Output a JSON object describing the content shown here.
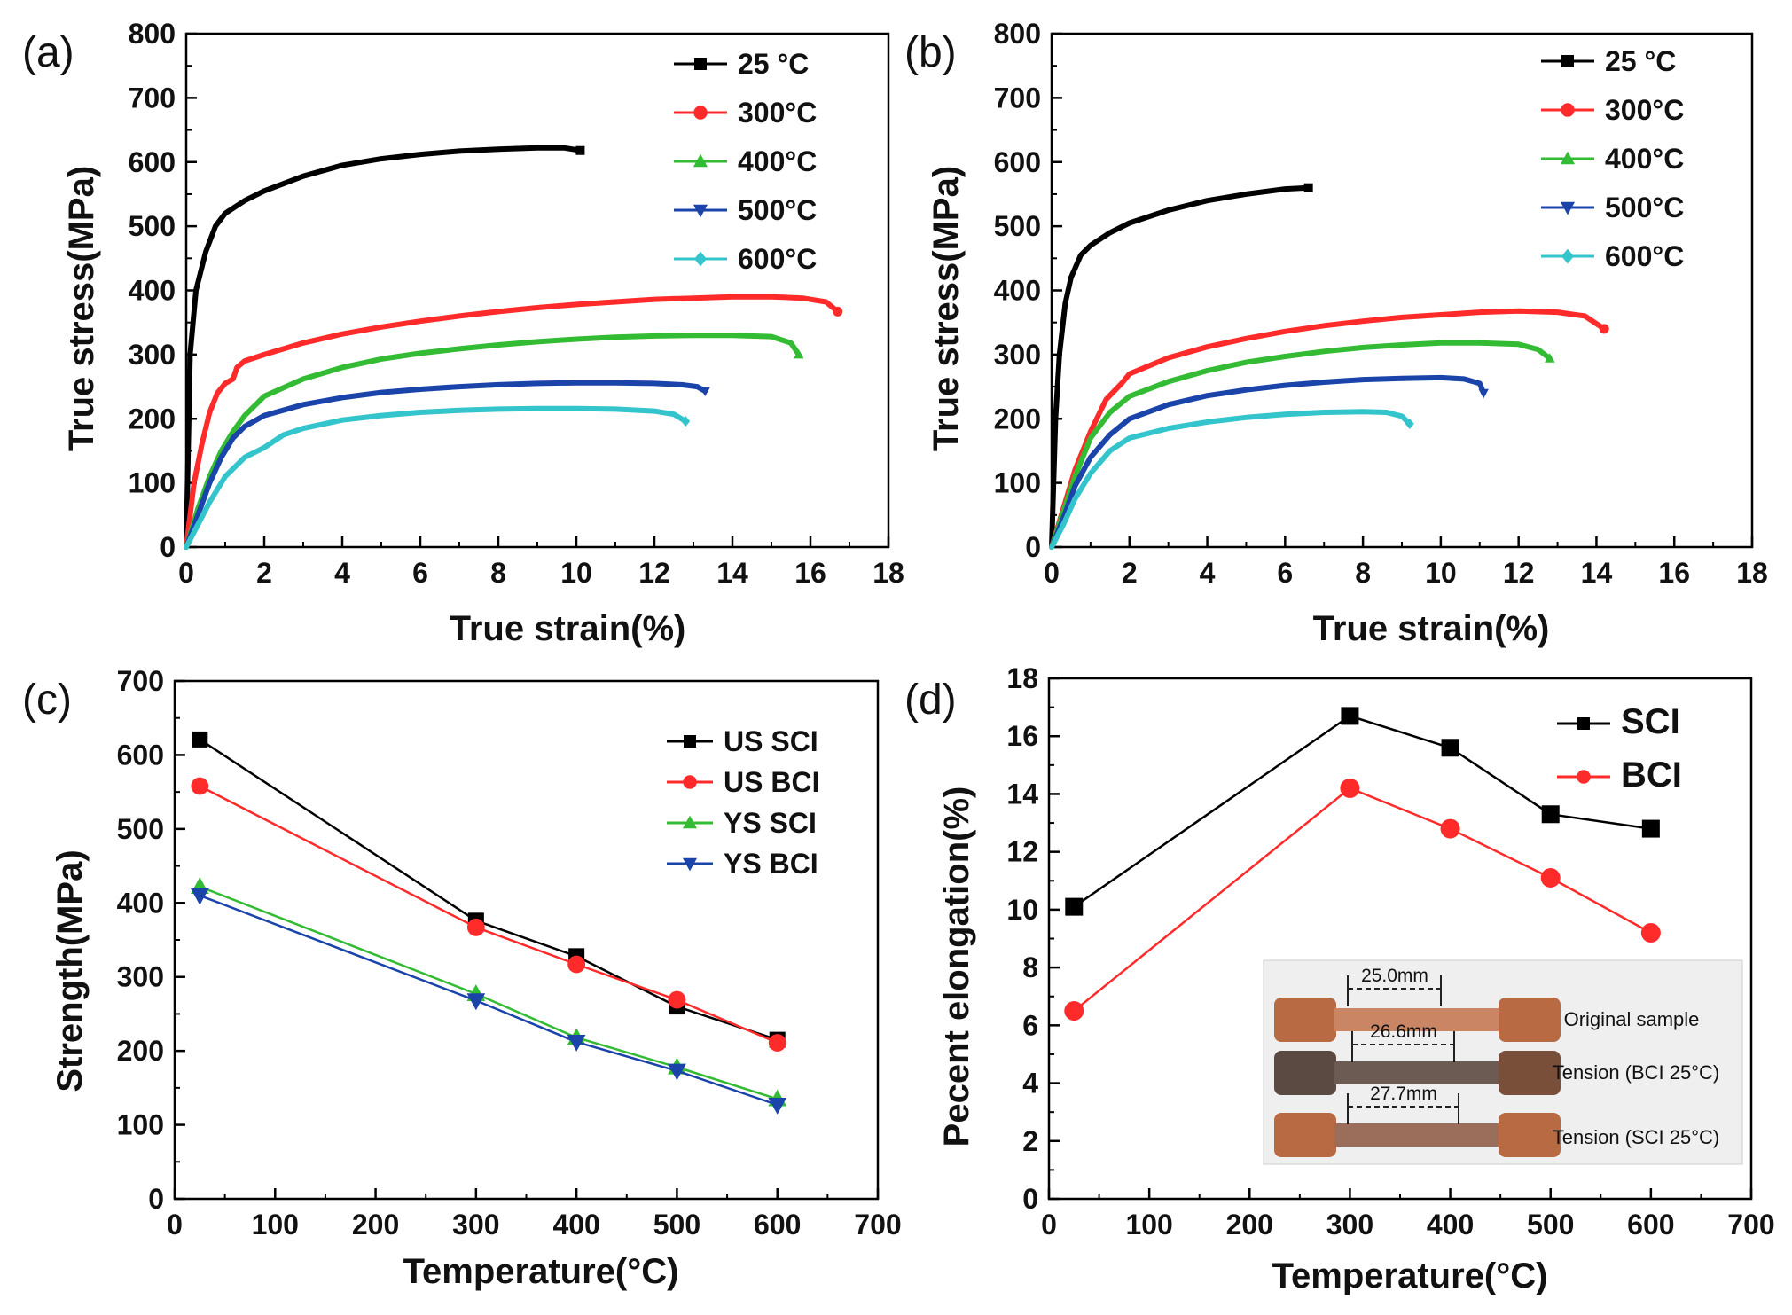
{
  "colors": {
    "black": "#000000",
    "red": "#ff2a2a",
    "green": "#33bb33",
    "blue": "#1a44aa",
    "cyan": "#33c4cc"
  },
  "chart_data": [
    {
      "type": "line",
      "panel_label": "(a)",
      "xlabel": "True strain(%)",
      "ylabel": "True stress(MPa)",
      "xlim": [
        0,
        18
      ],
      "ylim": [
        0,
        800
      ],
      "xticks": [
        "0",
        "2",
        "4",
        "6",
        "8",
        "10",
        "12",
        "14",
        "16",
        "18"
      ],
      "yticks": [
        "0",
        "100",
        "200",
        "300",
        "400",
        "500",
        "600",
        "700",
        "800"
      ],
      "legend_position": "top-right",
      "series": [
        {
          "name": "25 °C",
          "marker": "square",
          "color": "black",
          "x": [
            0,
            0.1,
            0.25,
            0.5,
            0.75,
            1.0,
            1.5,
            2,
            3,
            4,
            5,
            6,
            7,
            8,
            9,
            9.7,
            10.1
          ],
          "y": [
            0,
            300,
            400,
            460,
            500,
            520,
            540,
            555,
            578,
            595,
            605,
            612,
            617,
            620,
            622,
            622,
            618
          ]
        },
        {
          "name": "300°C",
          "marker": "circle",
          "color": "red",
          "x": [
            0,
            0.2,
            0.4,
            0.6,
            0.8,
            1.0,
            1.2,
            1.3,
            1.5,
            2,
            3,
            4,
            5,
            6,
            7,
            8,
            9,
            10,
            11,
            12,
            13,
            14,
            15,
            15.8,
            16.4,
            16.7
          ],
          "y": [
            0,
            100,
            160,
            210,
            240,
            255,
            262,
            280,
            290,
            300,
            318,
            332,
            343,
            352,
            360,
            367,
            373,
            378,
            382,
            386,
            388,
            390,
            390,
            388,
            382,
            367
          ]
        },
        {
          "name": "400°C",
          "marker": "triangle-up",
          "color": "green",
          "x": [
            0,
            0.3,
            0.6,
            0.9,
            1.2,
            1.5,
            2,
            3,
            4,
            5,
            6,
            7,
            8,
            9,
            10,
            11,
            12,
            13,
            14,
            15,
            15.5,
            15.7
          ],
          "y": [
            0,
            60,
            110,
            150,
            180,
            205,
            235,
            262,
            280,
            293,
            302,
            309,
            315,
            320,
            324,
            327,
            329,
            330,
            330,
            328,
            318,
            300
          ]
        },
        {
          "name": "500°C",
          "marker": "triangle-down",
          "color": "blue",
          "x": [
            0,
            0.3,
            0.6,
            0.9,
            1.2,
            1.5,
            2,
            3,
            4,
            5,
            6,
            7,
            8,
            9,
            10,
            11,
            12,
            12.7,
            13.1,
            13.3
          ],
          "y": [
            0,
            50,
            100,
            140,
            170,
            188,
            205,
            222,
            233,
            241,
            246,
            250,
            253,
            255,
            256,
            256,
            255,
            253,
            250,
            243
          ]
        },
        {
          "name": "600°C",
          "marker": "diamond",
          "color": "cyan",
          "x": [
            0,
            0.3,
            0.6,
            1.0,
            1.5,
            2,
            2.5,
            3,
            4,
            5,
            6,
            7,
            8,
            9,
            10,
            11,
            12,
            12.5,
            12.8
          ],
          "y": [
            0,
            35,
            70,
            110,
            140,
            155,
            175,
            185,
            198,
            205,
            210,
            213,
            215,
            216,
            216,
            215,
            212,
            207,
            196
          ]
        }
      ]
    },
    {
      "type": "line",
      "panel_label": "(b)",
      "xlabel": "True strain(%)",
      "ylabel": "True stress(MPa)",
      "xlim": [
        0,
        18
      ],
      "ylim": [
        0,
        800
      ],
      "xticks": [
        "0",
        "2",
        "4",
        "6",
        "8",
        "10",
        "12",
        "14",
        "16",
        "18"
      ],
      "yticks": [
        "0",
        "100",
        "200",
        "300",
        "400",
        "500",
        "600",
        "700",
        "800"
      ],
      "legend_position": "top-right",
      "series": [
        {
          "name": "25 °C",
          "marker": "square",
          "color": "black",
          "x": [
            0,
            0.1,
            0.2,
            0.35,
            0.5,
            0.75,
            1.0,
            1.5,
            2,
            3,
            4,
            5,
            6,
            6.6
          ],
          "y": [
            0,
            200,
            300,
            380,
            420,
            455,
            470,
            490,
            505,
            525,
            540,
            550,
            558,
            560
          ]
        },
        {
          "name": "300°C",
          "marker": "circle",
          "color": "red",
          "x": [
            0,
            0.3,
            0.6,
            1.0,
            1.4,
            1.8,
            2,
            3,
            4,
            5,
            6,
            7,
            8,
            9,
            10,
            11,
            12,
            13,
            13.7,
            14.2
          ],
          "y": [
            0,
            60,
            120,
            180,
            230,
            255,
            270,
            295,
            312,
            325,
            336,
            345,
            352,
            358,
            362,
            366,
            368,
            366,
            360,
            340
          ]
        },
        {
          "name": "400°C",
          "marker": "triangle-up",
          "color": "green",
          "x": [
            0,
            0.3,
            0.6,
            1.0,
            1.5,
            2,
            3,
            4,
            5,
            6,
            7,
            8,
            9,
            10,
            11,
            12,
            12.5,
            12.8
          ],
          "y": [
            0,
            55,
            110,
            170,
            210,
            235,
            258,
            275,
            288,
            297,
            305,
            311,
            315,
            318,
            318,
            316,
            308,
            294
          ]
        },
        {
          "name": "500°C",
          "marker": "triangle-down",
          "color": "blue",
          "x": [
            0,
            0.3,
            0.6,
            1.0,
            1.5,
            2,
            3,
            4,
            5,
            6,
            7,
            8,
            9,
            10,
            10.6,
            11.0,
            11.1
          ],
          "y": [
            0,
            45,
            95,
            140,
            175,
            200,
            222,
            236,
            245,
            252,
            257,
            261,
            263,
            264,
            262,
            255,
            240
          ]
        },
        {
          "name": "600°C",
          "marker": "diamond",
          "color": "cyan",
          "x": [
            0,
            0.3,
            0.6,
            1.0,
            1.5,
            2,
            3,
            4,
            5,
            6,
            7,
            8,
            8.6,
            9.0,
            9.2
          ],
          "y": [
            0,
            35,
            75,
            115,
            150,
            170,
            185,
            195,
            202,
            207,
            210,
            211,
            210,
            204,
            192
          ]
        }
      ]
    },
    {
      "type": "line",
      "panel_label": "(c)",
      "xlabel": "Temperature(°C)",
      "ylabel": "Strength(MPa)",
      "xlim": [
        0,
        700
      ],
      "ylim": [
        0,
        700
      ],
      "xticks": [
        "0",
        "100",
        "200",
        "300",
        "400",
        "500",
        "600",
        "700"
      ],
      "yticks": [
        "0",
        "100",
        "200",
        "300",
        "400",
        "500",
        "600",
        "700"
      ],
      "legend_position": "top-right",
      "series": [
        {
          "name": "US SCI",
          "marker": "square",
          "color": "black",
          "x": [
            25,
            300,
            400,
            500,
            600
          ],
          "y": [
            621,
            376,
            328,
            260,
            215
          ]
        },
        {
          "name": "US BCI",
          "marker": "circle",
          "color": "red",
          "x": [
            25,
            300,
            400,
            500,
            600
          ],
          "y": [
            558,
            367,
            317,
            269,
            211
          ]
        },
        {
          "name": "YS SCI",
          "marker": "triangle-up",
          "color": "green",
          "x": [
            25,
            300,
            400,
            500,
            600
          ],
          "y": [
            422,
            277,
            218,
            178,
            135
          ]
        },
        {
          "name": "YS BCI",
          "marker": "triangle-down",
          "color": "blue",
          "x": [
            25,
            300,
            400,
            500,
            600
          ],
          "y": [
            410,
            268,
            212,
            173,
            127
          ]
        }
      ]
    },
    {
      "type": "line",
      "panel_label": "(d)",
      "xlabel": "Temperature(°C)",
      "ylabel": "Pecent elongation(%)",
      "xlim": [
        0,
        700
      ],
      "ylim": [
        0,
        18
      ],
      "xticks": [
        "0",
        "100",
        "200",
        "300",
        "400",
        "500",
        "600",
        "700"
      ],
      "yticks": [
        "0",
        "2",
        "4",
        "6",
        "8",
        "10",
        "12",
        "14",
        "16",
        "18"
      ],
      "legend_position": "top-right",
      "series": [
        {
          "name": "SCI",
          "marker": "square",
          "color": "black",
          "x": [
            25,
            300,
            400,
            500,
            600
          ],
          "y": [
            10.1,
            16.7,
            15.6,
            13.3,
            12.8
          ]
        },
        {
          "name": "BCI",
          "marker": "circle",
          "color": "red",
          "x": [
            25,
            300,
            400,
            500,
            600
          ],
          "y": [
            6.5,
            14.2,
            12.8,
            11.1,
            9.2
          ]
        }
      ],
      "inset": {
        "samples": [
          {
            "length": "25.0mm",
            "label": "Original sample"
          },
          {
            "length": "26.6mm",
            "label": "Tension (BCI 25°C)"
          },
          {
            "length": "27.7mm",
            "label": "Tension (SCI 25°C)"
          }
        ]
      }
    }
  ]
}
